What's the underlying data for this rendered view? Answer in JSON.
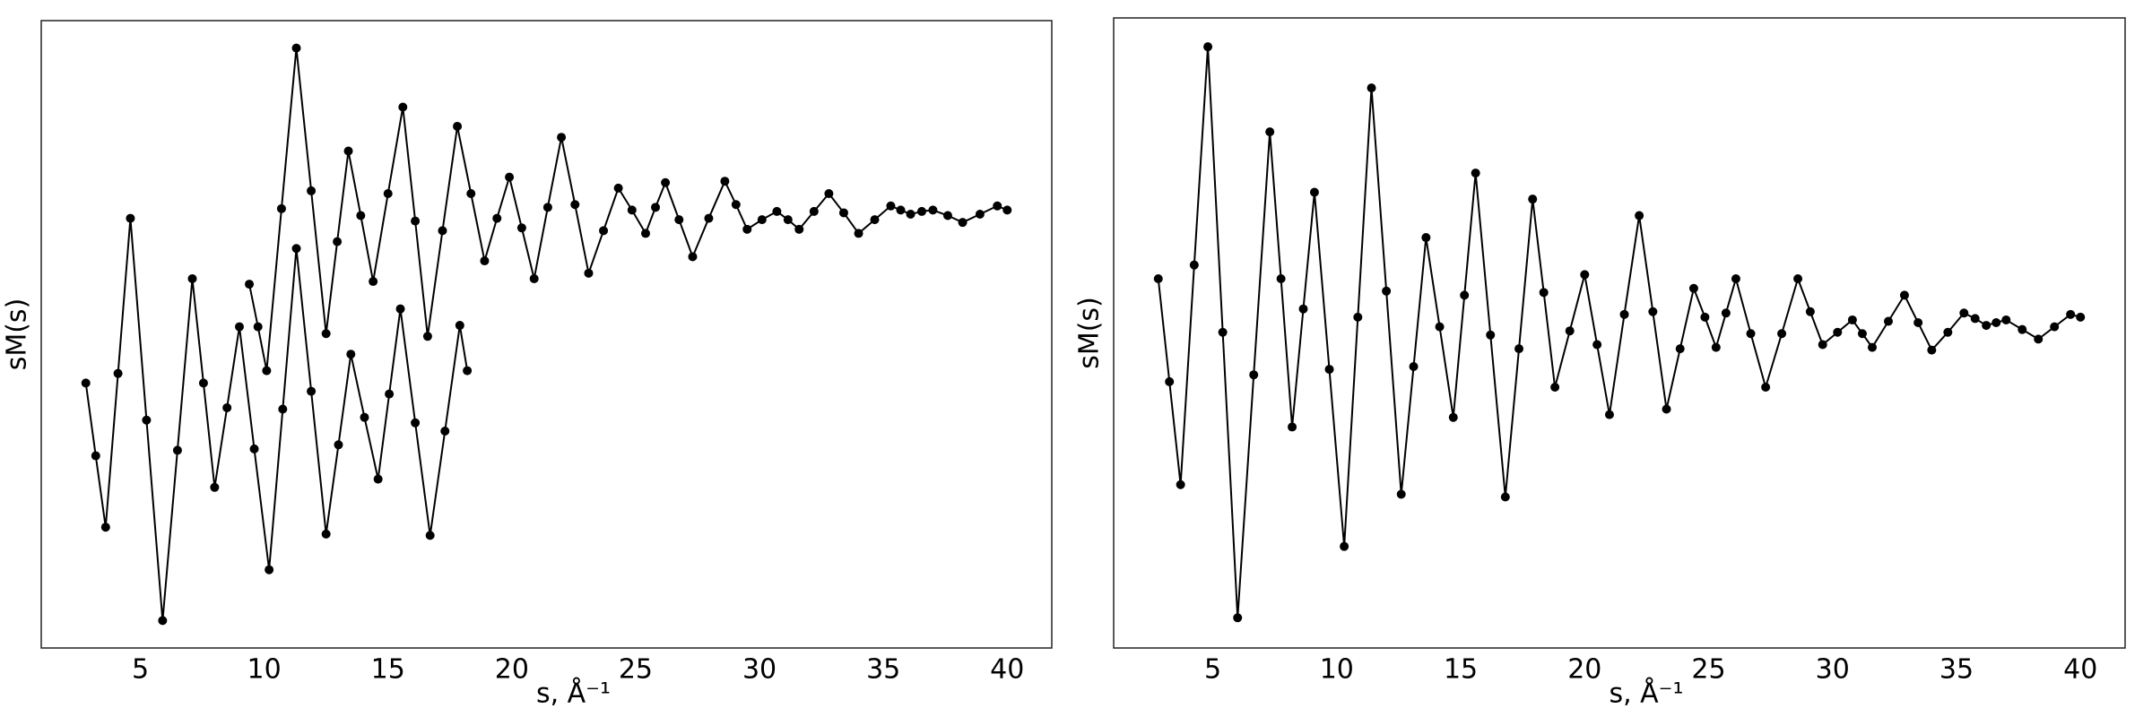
{
  "chart_data": [
    {
      "type": "line",
      "xlabel": "s, Å⁻¹",
      "ylabel": "sM(s)",
      "grid": false,
      "marker": "circle",
      "xlim": [
        1.0,
        41.8
      ],
      "ylim": [
        -23.2,
        22.5
      ],
      "xticks": [
        5,
        10,
        15,
        20,
        25,
        30,
        35,
        40
      ],
      "series": [
        {
          "color": "#000000",
          "x": [
            2.8,
            3.2,
            3.6,
            4.1,
            4.6,
            5.25,
            5.9,
            6.5,
            7.1,
            7.55,
            8.0,
            8.5,
            9.0,
            9.6,
            10.2,
            10.75,
            11.3,
            11.9,
            12.5,
            13.0,
            13.5,
            14.05,
            14.6,
            15.05,
            15.5,
            16.1,
            16.7,
            17.3,
            17.9,
            18.2
          ],
          "values": [
            -3.9,
            -9.2,
            -14.4,
            -3.2,
            8.1,
            -6.6,
            -21.2,
            -8.8,
            3.7,
            -3.9,
            -11.5,
            -5.7,
            0.2,
            -8.7,
            -17.5,
            -5.8,
            5.9,
            -4.5,
            -14.9,
            -8.4,
            -1.8,
            -6.4,
            -10.9,
            -4.7,
            1.5,
            -6.8,
            -15.0,
            -7.4,
            0.3,
            -3.0
          ]
        },
        {
          "color": "#000000",
          "x": [
            9.4,
            9.75,
            10.1,
            10.7,
            11.3,
            11.9,
            12.5,
            12.95,
            13.4,
            13.9,
            14.4,
            15.0,
            15.6,
            16.1,
            16.6,
            17.2,
            17.8,
            18.35,
            18.9,
            19.4,
            19.9,
            20.4,
            20.9,
            21.45,
            22.0,
            22.55,
            23.1,
            23.7,
            24.3,
            24.85,
            25.4,
            25.8,
            26.2,
            26.75,
            27.3,
            27.95,
            28.6,
            29.05,
            29.5,
            30.1,
            30.7,
            31.15,
            31.6,
            32.2,
            32.8,
            33.4,
            34.0,
            34.65,
            35.3,
            35.7,
            36.1,
            36.55,
            37.0,
            37.6,
            38.2,
            38.9,
            39.6,
            40.0
          ],
          "values": [
            3.3,
            0.2,
            -3.0,
            8.8,
            20.5,
            10.1,
            -0.3,
            6.4,
            13.0,
            8.3,
            3.5,
            9.9,
            16.2,
            7.9,
            -0.5,
            7.2,
            14.8,
            9.9,
            5.0,
            8.1,
            11.1,
            7.4,
            3.7,
            8.9,
            14.0,
            9.1,
            4.1,
            7.2,
            10.3,
            8.7,
            7.0,
            8.9,
            10.7,
            8.0,
            5.3,
            8.1,
            10.8,
            9.1,
            7.3,
            8.0,
            8.6,
            8.0,
            7.3,
            8.6,
            9.9,
            8.5,
            7.0,
            8.0,
            9.0,
            8.7,
            8.4,
            8.6,
            8.7,
            8.3,
            7.8,
            8.4,
            9.0,
            8.7
          ]
        }
      ]
    },
    {
      "type": "line",
      "xlabel": "s, Å⁻¹",
      "ylabel": "sM(s)",
      "grid": false,
      "marker": "circle",
      "xlim": [
        1.0,
        41.8
      ],
      "ylim": [
        -23.2,
        22.7
      ],
      "xticks": [
        5,
        10,
        15,
        20,
        25,
        30,
        35,
        40
      ],
      "series": [
        {
          "color": "#000000",
          "x": [
            2.8,
            3.25,
            3.7,
            4.25,
            4.8,
            5.4,
            6.0,
            6.65,
            7.3,
            7.75,
            8.2,
            8.65,
            9.1,
            9.7,
            10.3,
            10.85,
            11.4,
            12.0,
            12.6,
            13.1,
            13.6,
            14.15,
            14.7,
            15.15,
            15.6,
            16.2,
            16.8,
            17.35,
            17.9,
            18.35,
            18.8,
            19.4,
            20.0,
            20.5,
            21.0,
            21.6,
            22.2,
            22.75,
            23.3,
            23.85,
            24.4,
            24.85,
            25.3,
            25.7,
            26.1,
            26.7,
            27.3,
            27.95,
            28.6,
            29.1,
            29.6,
            30.2,
            30.8,
            31.2,
            31.6,
            32.25,
            32.9,
            33.45,
            34.0,
            34.65,
            35.3,
            35.75,
            36.2,
            36.6,
            37.0,
            37.65,
            38.3,
            38.95,
            39.6,
            40.0
          ],
          "values": [
            3.7,
            -3.8,
            -11.3,
            4.7,
            20.6,
            -0.2,
            -21.0,
            -3.3,
            14.4,
            3.7,
            -7.1,
            1.5,
            10.0,
            -2.9,
            -15.8,
            0.9,
            17.6,
            2.8,
            -12.0,
            -2.7,
            6.7,
            0.2,
            -6.4,
            2.5,
            11.4,
            -0.4,
            -12.2,
            -1.4,
            9.5,
            2.7,
            -4.2,
            -0.1,
            4.0,
            -1.1,
            -6.2,
            1.1,
            8.3,
            1.3,
            -5.8,
            -1.4,
            3.0,
            0.9,
            -1.3,
            1.2,
            3.7,
            -0.3,
            -4.2,
            -0.3,
            3.7,
            1.3,
            -1.1,
            -0.2,
            0.7,
            -0.3,
            -1.3,
            0.6,
            2.5,
            0.5,
            -1.5,
            -0.2,
            1.2,
            0.8,
            0.3,
            0.5,
            0.7,
            0.0,
            -0.7,
            0.2,
            1.1,
            0.9
          ]
        }
      ]
    }
  ]
}
